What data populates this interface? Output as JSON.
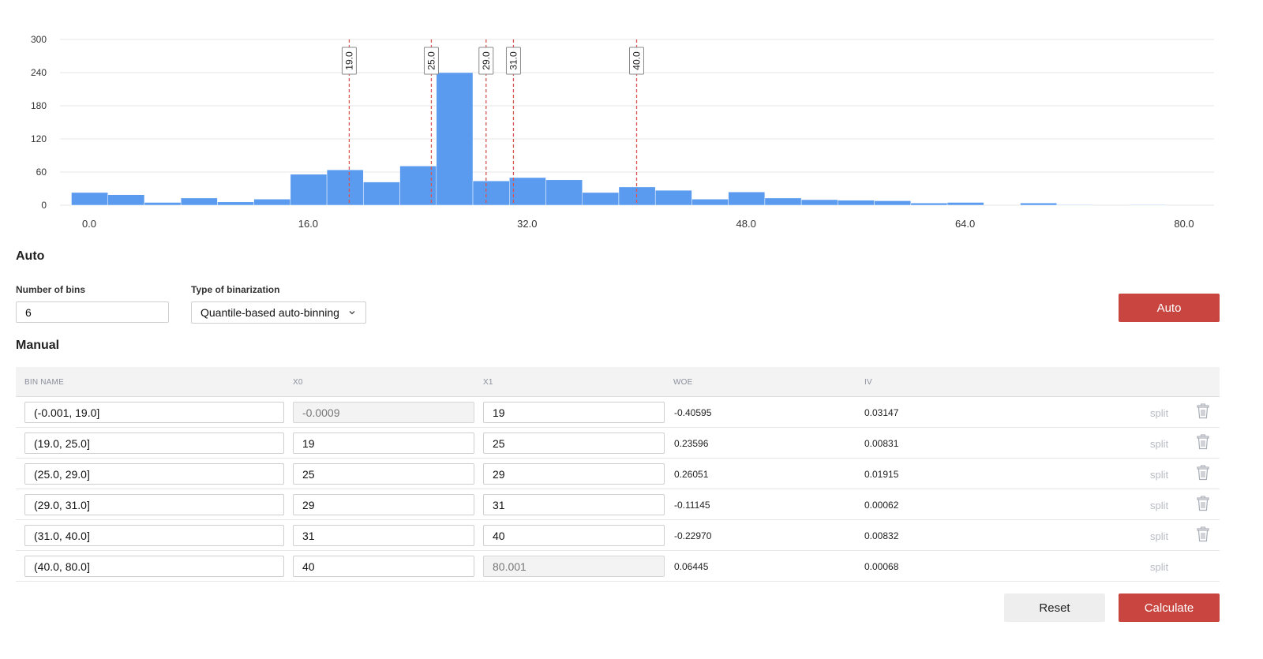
{
  "chart_data": {
    "type": "bar",
    "y_ticks": [
      0,
      60,
      120,
      180,
      240,
      300
    ],
    "x_ticks": [
      "0.0",
      "16.0",
      "32.0",
      "48.0",
      "64.0",
      "80.0"
    ],
    "xlim": [
      0,
      80
    ],
    "ylim": [
      0,
      300
    ],
    "bin_width": 2.667,
    "bin_starts": [
      -1.3,
      1.367,
      4.033,
      6.7,
      9.367,
      12.033,
      14.7,
      17.367,
      20.033,
      22.7,
      25.367,
      28.033,
      30.7,
      33.367,
      36.033,
      38.7,
      41.367,
      44.033,
      46.7,
      49.367,
      52.033,
      54.7,
      57.367,
      60.033,
      62.7,
      65.367,
      68.033,
      70.7,
      73.367,
      76.033,
      78.7
    ],
    "values": [
      23,
      19,
      5,
      13,
      6,
      11,
      56,
      64,
      42,
      71,
      240,
      44,
      50,
      46,
      23,
      33,
      27,
      11,
      24,
      13,
      10,
      9,
      8,
      4,
      5,
      0,
      4,
      1,
      0,
      1,
      0
    ],
    "splits": [
      {
        "label": "19.0",
        "value": 19.0
      },
      {
        "label": "25.0",
        "value": 25.0
      },
      {
        "label": "29.0",
        "value": 29.0
      },
      {
        "label": "31.0",
        "value": 31.0
      },
      {
        "label": "40.0",
        "value": 40.0
      }
    ],
    "colors": {
      "bar": "#5a9bef",
      "split": "#d9534f"
    }
  },
  "auto": {
    "title": "Auto",
    "bins_label": "Number of bins",
    "bins_value": "6",
    "type_label": "Type of binarization",
    "type_value": "Quantile-based auto-binning",
    "auto_button": "Auto"
  },
  "manual": {
    "title": "Manual",
    "columns": {
      "bin_name": "BIN NAME",
      "x0": "X0",
      "x1": "X1",
      "woe": "WOE",
      "iv": "IV"
    },
    "split_label": "split",
    "rows": [
      {
        "name": "(-0.001, 19.0]",
        "x0": "-0.0009",
        "x1": "19",
        "woe": "-0.40595",
        "iv": "0.03147"
      },
      {
        "name": "(19.0, 25.0]",
        "x0": "19",
        "x1": "25",
        "woe": "0.23596",
        "iv": "0.00831"
      },
      {
        "name": "(25.0, 29.0]",
        "x0": "25",
        "x1": "29",
        "woe": "0.26051",
        "iv": "0.01915"
      },
      {
        "name": "(29.0, 31.0]",
        "x0": "29",
        "x1": "31",
        "woe": "-0.11145",
        "iv": "0.00062"
      },
      {
        "name": "(31.0, 40.0]",
        "x0": "31",
        "x1": "40",
        "woe": "-0.22970",
        "iv": "0.00832"
      },
      {
        "name": "(40.0, 80.0]",
        "x0": "40",
        "x1": "80.001",
        "woe": "0.06445",
        "iv": "0.00068"
      }
    ],
    "reset_button": "Reset",
    "calculate_button": "Calculate"
  }
}
